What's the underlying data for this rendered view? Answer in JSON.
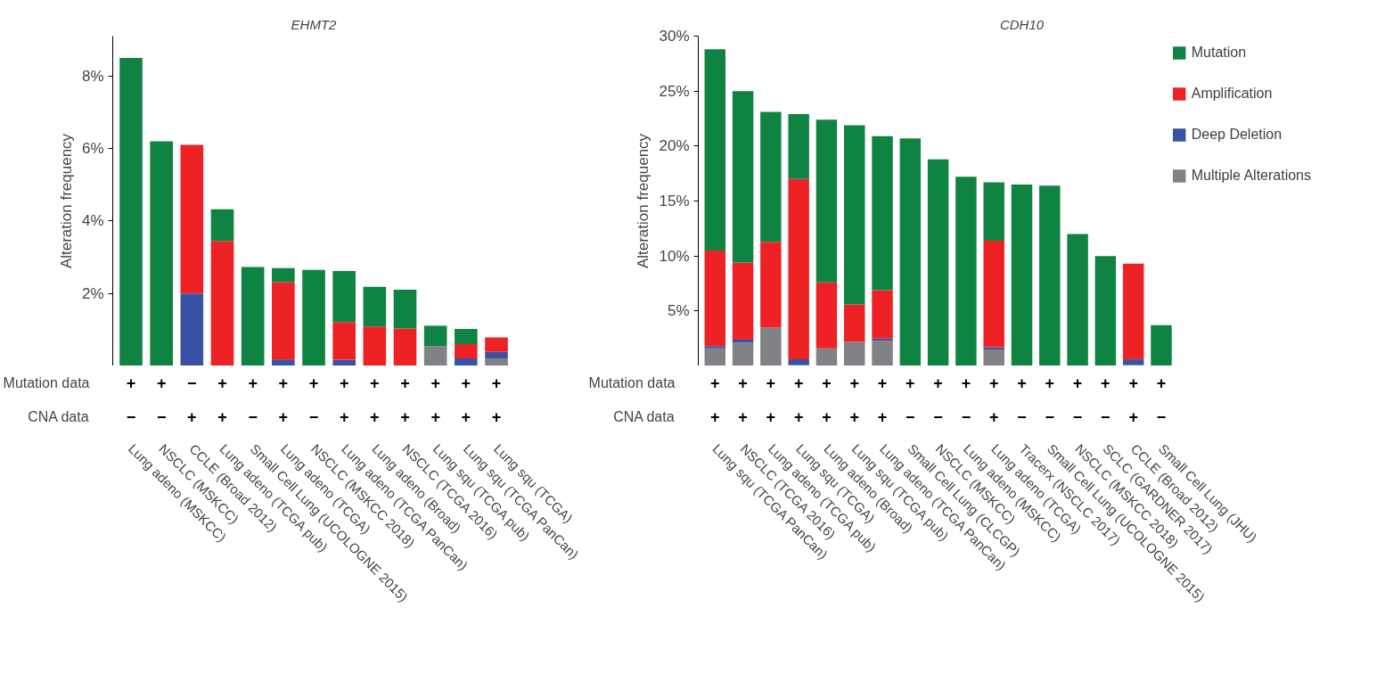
{
  "chart_data": [
    {
      "type": "bar",
      "stacked": true,
      "title": "EHMT2",
      "ylabel": "Alteration frequency",
      "categories": [
        "Lung adeno (MSKCC)",
        "NSCLC (MSKCC)",
        "CCLE (Broad 2012)",
        "Lung adeno (TCGA pub)",
        "Small Cell Lung (UCOLOGNE 2015)",
        "Lung adeno (TCGA)",
        "NSCLC (MSKCC 2018)",
        "Lung adeno (TCGA PanCan)",
        "Lung adeno (Broad)",
        "NSCLC (TCGA 2016)",
        "Lung squ (TCGA pub)",
        "Lung squ (TCGA PanCan)",
        "Lung squ (TCGA)"
      ],
      "series": [
        {
          "color": "#808285",
          "values": [
            0,
            0,
            0,
            0,
            0,
            0,
            0,
            0,
            0,
            0,
            0.55,
            0,
            0.21
          ]
        },
        {
          "color": "#3953a4",
          "values": [
            0,
            0,
            2.0,
            0,
            0,
            0.18,
            0,
            0.17,
            0,
            0,
            0,
            0.21,
            0.18
          ]
        },
        {
          "color": "#ee2224",
          "values": [
            0,
            0,
            4.1,
            3.45,
            0,
            2.13,
            0,
            1.04,
            1.09,
            1.03,
            0,
            0.39,
            0.4
          ]
        },
        {
          "color": "#0f8442",
          "values": [
            8.5,
            6.2,
            0,
            0.87,
            2.73,
            0.39,
            2.65,
            1.41,
            1.09,
            1.07,
            0.56,
            0.42,
            0
          ]
        }
      ],
      "ylim": [
        0,
        9.1
      ],
      "yticks": [
        {
          "value": 2,
          "label": "2%"
        },
        {
          "value": 4,
          "label": "4%"
        },
        {
          "value": 6,
          "label": "6%"
        },
        {
          "value": 8,
          "label": "8%"
        }
      ],
      "grid": false,
      "legend": false,
      "annotations": [
        "Mutation data",
        "+",
        "+",
        "−",
        "+",
        "+",
        "+",
        "+",
        "+",
        "+",
        "+",
        "+",
        "+",
        "+",
        "CNA data",
        "−",
        "−",
        "+",
        "+",
        "−",
        "+",
        "−",
        "+",
        "+",
        "+",
        "+",
        "+",
        "+"
      ]
    },
    {
      "type": "bar",
      "stacked": true,
      "title": "CDH10",
      "ylabel": "Alteration frequency",
      "categories": [
        "Lung squ (TCGA PanCan)",
        "NSCLC (TCGA 2016)",
        "Lung adeno (TCGA pub)",
        "Lung squ (TCGA)",
        "Lung adeno (Broad)",
        "Lung squ (TCGA pub)",
        "Lung adeno (TCGA PanCan)",
        "Small Cell Lung (CLCGP)",
        "NSCLC (MSKCC)",
        "Lung adeno (MSKCC)",
        "Lung adeno (TCGA)",
        "Tracerx (NSCLC 2017)",
        "Small Cell Lung (UCOLOGNE 2015)",
        "NSCLC (MSKCC 2018)",
        "SCLC (GARDNER 2017)",
        "CCLE (Broad 2012)",
        "Small Cell Lung (JHU)"
      ],
      "series": [
        {
          "name": "Multiple Alterations",
          "color": "#808285",
          "values": [
            1.6,
            2.1,
            3.5,
            0.1,
            1.6,
            2.2,
            2.3,
            0,
            0,
            0,
            1.5,
            0,
            0,
            0,
            0,
            0.1,
            0
          ]
        },
        {
          "name": "Deep Deletion",
          "color": "#3953a4",
          "values": [
            0.2,
            0.3,
            0,
            0.5,
            0,
            0,
            0.2,
            0,
            0,
            0,
            0.2,
            0,
            0,
            0,
            0,
            0.5,
            0
          ]
        },
        {
          "name": "Amplification",
          "color": "#ee2224",
          "values": [
            8.7,
            7.0,
            7.8,
            16.4,
            6.0,
            3.4,
            4.4,
            0,
            0,
            0,
            9.7,
            0,
            0,
            0,
            0,
            8.7,
            0
          ]
        },
        {
          "name": "Mutation",
          "color": "#0f8442",
          "values": [
            18.3,
            15.6,
            11.8,
            5.9,
            14.8,
            16.3,
            14.0,
            20.7,
            18.8,
            17.2,
            5.3,
            16.5,
            16.4,
            12.0,
            10.0,
            0,
            3.7
          ]
        }
      ],
      "ylim": [
        0,
        30
      ],
      "yticks": [
        {
          "value": 5,
          "label": "5%"
        },
        {
          "value": 10,
          "label": "10%"
        },
        {
          "value": 15,
          "label": "15%"
        },
        {
          "value": 20,
          "label": "20%"
        },
        {
          "value": 25,
          "label": "25%"
        },
        {
          "value": 30,
          "label": "30%"
        }
      ],
      "grid": false,
      "legend": "top right",
      "annotations": [
        "Mutation data",
        "+",
        "+",
        "+",
        "+",
        "+",
        "+",
        "+",
        "+",
        "+",
        "+",
        "+",
        "+",
        "+",
        "+",
        "+",
        "+",
        "+",
        "CNA data",
        "+",
        "+",
        "+",
        "+",
        "+",
        "+",
        "+",
        "−",
        "−",
        "−",
        "+",
        "−",
        "−",
        "−",
        "−",
        "+",
        "−"
      ]
    }
  ]
}
